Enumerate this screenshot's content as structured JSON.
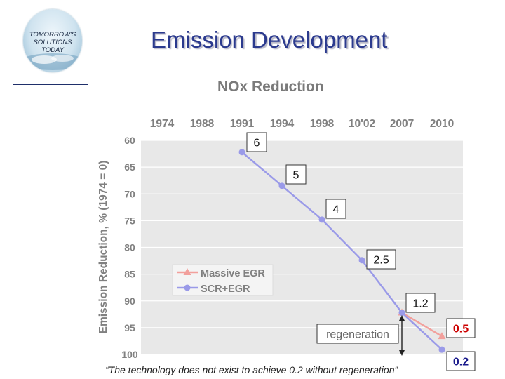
{
  "slide": {
    "title": "Emission Development"
  },
  "logo": {
    "lines": [
      "TOMORROW'S",
      "SOLUTIONS",
      "TODAY"
    ]
  },
  "footnote": "“The technology does not exist to achieve 0.2 without regeneration”",
  "colors": {
    "massive_egr": "#f2a09c",
    "scr_egr": "#9a9ae8",
    "plot_bg": "#e8e8e8",
    "axis_text": "#808080",
    "highlight": "#cc0000",
    "emphasis": "#1a1a8c"
  },
  "chart_data": {
    "type": "line",
    "title": "NOx Reduction",
    "xlabel": "",
    "ylabel": "Emission Reduction, % (1974 = 0)",
    "x": [
      "1974",
      "1988",
      "1991",
      "1994",
      "1998",
      "10'02",
      "2007",
      "2010"
    ],
    "x_axis_position": "top",
    "ylim": [
      60,
      100
    ],
    "y_inverted": true,
    "y_ticks": [
      60,
      65,
      70,
      75,
      80,
      85,
      90,
      95,
      100
    ],
    "grid": true,
    "legend": "left-center",
    "series": [
      {
        "name": "Massive EGR",
        "marker": "triangle",
        "values": [
          null,
          null,
          null,
          null,
          null,
          null,
          92.2,
          96.6
        ]
      },
      {
        "name": "SCR+EGR",
        "marker": "circle",
        "values": [
          null,
          null,
          62.2,
          68.5,
          74.8,
          82.4,
          92.2,
          99.1
        ]
      }
    ],
    "annotations": [
      {
        "text": "6",
        "x": "1991",
        "style": "box"
      },
      {
        "text": "5",
        "x": "1994",
        "style": "box"
      },
      {
        "text": "4",
        "x": "1998",
        "style": "box"
      },
      {
        "text": "2.5",
        "x": "10'02",
        "style": "box"
      },
      {
        "text": "1.2",
        "x": "2007",
        "style": "box"
      },
      {
        "text": "regeneration",
        "style": "box"
      },
      {
        "text": "0.5",
        "x": "2010",
        "style": "box-bold-red"
      },
      {
        "text": "0.2",
        "x": "2010",
        "style": "box-bold-blue"
      }
    ]
  }
}
